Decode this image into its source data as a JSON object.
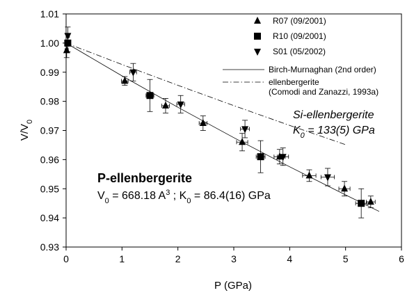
{
  "chart_data": {
    "type": "scatter",
    "xlabel": "P (GPa)",
    "ylabel": "V/V",
    "ylabel_subscript": "0",
    "xlim": [
      0,
      6
    ],
    "ylim": [
      0.93,
      1.01
    ],
    "x_ticks": [
      0,
      1,
      2,
      3,
      4,
      5,
      6
    ],
    "y_ticks": [
      0.93,
      0.94,
      0.95,
      0.96,
      0.97,
      0.98,
      0.99,
      1.0,
      1.01
    ],
    "x_tick_labels": [
      "0",
      "1",
      "2",
      "3",
      "4",
      "5",
      "6"
    ],
    "y_tick_labels": [
      "0.93",
      "0.94",
      "0.95",
      "0.96",
      "0.97",
      "0.98",
      "0.99",
      "1.00",
      "1.01"
    ],
    "grid": false,
    "legend_position": "top-right",
    "series": [
      {
        "name": "R07 (09/2001)",
        "marker": "triangle-up",
        "points": [
          {
            "x": 0.01,
            "y": 0.9975,
            "xerr": 0.03,
            "yerr": 0.0025
          },
          {
            "x": 1.05,
            "y": 0.987,
            "xerr": 0.06,
            "yerr": 0.0015
          },
          {
            "x": 1.78,
            "y": 0.9785,
            "xerr": 0.07,
            "yerr": 0.0025
          },
          {
            "x": 2.45,
            "y": 0.9725,
            "xerr": 0.07,
            "yerr": 0.0025
          },
          {
            "x": 3.15,
            "y": 0.966,
            "xerr": 0.1,
            "yerr": 0.003
          },
          {
            "x": 3.82,
            "y": 0.961,
            "xerr": 0.1,
            "yerr": 0.0025
          },
          {
            "x": 4.35,
            "y": 0.9545,
            "xerr": 0.12,
            "yerr": 0.002
          },
          {
            "x": 4.98,
            "y": 0.95,
            "xerr": 0.1,
            "yerr": 0.0025
          },
          {
            "x": 5.45,
            "y": 0.9455,
            "xerr": 0.08,
            "yerr": 0.002
          }
        ]
      },
      {
        "name": "R10 (09/2001)",
        "marker": "square",
        "points": [
          {
            "x": 0.03,
            "y": 1.0,
            "xerr": 0.04,
            "yerr": 0.003
          },
          {
            "x": 1.5,
            "y": 0.982,
            "xerr": 0.07,
            "yerr": 0.0055
          },
          {
            "x": 3.48,
            "y": 0.961,
            "xerr": 0.08,
            "yerr": 0.0055
          },
          {
            "x": 5.28,
            "y": 0.945,
            "xerr": 0.1,
            "yerr": 0.005
          }
        ]
      },
      {
        "name": "S01 (05/2002)",
        "marker": "triangle-down",
        "points": [
          {
            "x": 0.03,
            "y": 1.0025,
            "xerr": 0.03,
            "yerr": 0.003
          },
          {
            "x": 1.2,
            "y": 0.99,
            "xerr": 0.06,
            "yerr": 0.003
          },
          {
            "x": 2.05,
            "y": 0.979,
            "xerr": 0.07,
            "yerr": 0.003
          },
          {
            "x": 3.2,
            "y": 0.9705,
            "xerr": 0.08,
            "yerr": 0.003
          },
          {
            "x": 3.88,
            "y": 0.961,
            "xerr": 0.1,
            "yerr": 0.003
          },
          {
            "x": 4.68,
            "y": 0.954,
            "xerr": 0.12,
            "yerr": 0.003
          }
        ]
      }
    ],
    "fits": [
      {
        "name": "Birch-Murnaghan (2nd order)",
        "style": "solid",
        "points": [
          [
            0,
            1.0
          ],
          [
            1,
            0.98875
          ],
          [
            2,
            0.97795
          ],
          [
            3,
            0.96755
          ],
          [
            4,
            0.95754
          ],
          [
            5,
            0.94788
          ],
          [
            5.6,
            0.94222
          ]
        ]
      },
      {
        "name": "ellenbergerite",
        "name_line2": "(Comodi and Zanazzi, 1993a)",
        "style": "dash-dot",
        "points": [
          [
            0,
            1.0
          ],
          [
            1,
            0.99265
          ],
          [
            2,
            0.98549
          ],
          [
            3,
            0.97853
          ],
          [
            4,
            0.97175
          ],
          [
            5,
            0.96514
          ]
        ]
      }
    ],
    "annotations": {
      "si_name": "Si-ellenbergerite",
      "si_k0_main": "K",
      "si_k0_sub": "0",
      "si_k0_rest": " = 133(5) GPa",
      "p_name": "P-ellenbergerite",
      "p_v0_main": "V",
      "p_v0_sub": "0",
      "p_v0_mid": " = 668.18 A",
      "p_v0_sup": "3",
      "p_sep": " ; K",
      "p_k0_sub": "0",
      "p_k0_rest": " = 86.4(16) GPa"
    }
  }
}
